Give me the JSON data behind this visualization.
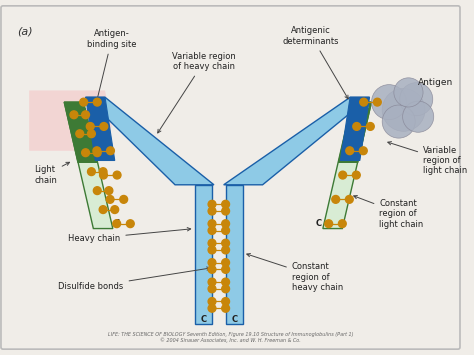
{
  "bg_color": "#f0ede8",
  "border_color": "#bbbbbb",
  "title_label": "(a)",
  "colors": {
    "heavy_dark": "#1a5fa8",
    "heavy_light": "#8ecae6",
    "light_dark": "#3d7a35",
    "light_light": "#b8d9b0",
    "light_pale": "#d8ecd4",
    "disulfide": "#c8860a",
    "pink": "#f5c5c5",
    "antigen_gray": "#a8b0c0",
    "white": "#ffffff"
  },
  "labels": {
    "antigen_binding": "Antigen-\nbinding site",
    "antigenic_det": "Antigenic\ndeterminants",
    "antigen": "Antigen",
    "variable_heavy": "Variable region\nof heavy chain",
    "light_chain": "Light\nchain",
    "heavy_chain": "Heavy chain",
    "disulfide": "Disulfide bonds",
    "variable_light": "Variable\nregion of\nlight chain",
    "constant_light": "Constant\nregion of\nlight chain",
    "constant_heavy": "Constant\nregion of\nheavy chain",
    "caption": "LIFE: THE SCIENCE OF BIOLOGY Seventh Edition, Figure 19.10 Structure of Immunoglobulins (Part 1)\n© 2004 Sinauer Associates, Inc. and W. H. Freeman & Co."
  }
}
